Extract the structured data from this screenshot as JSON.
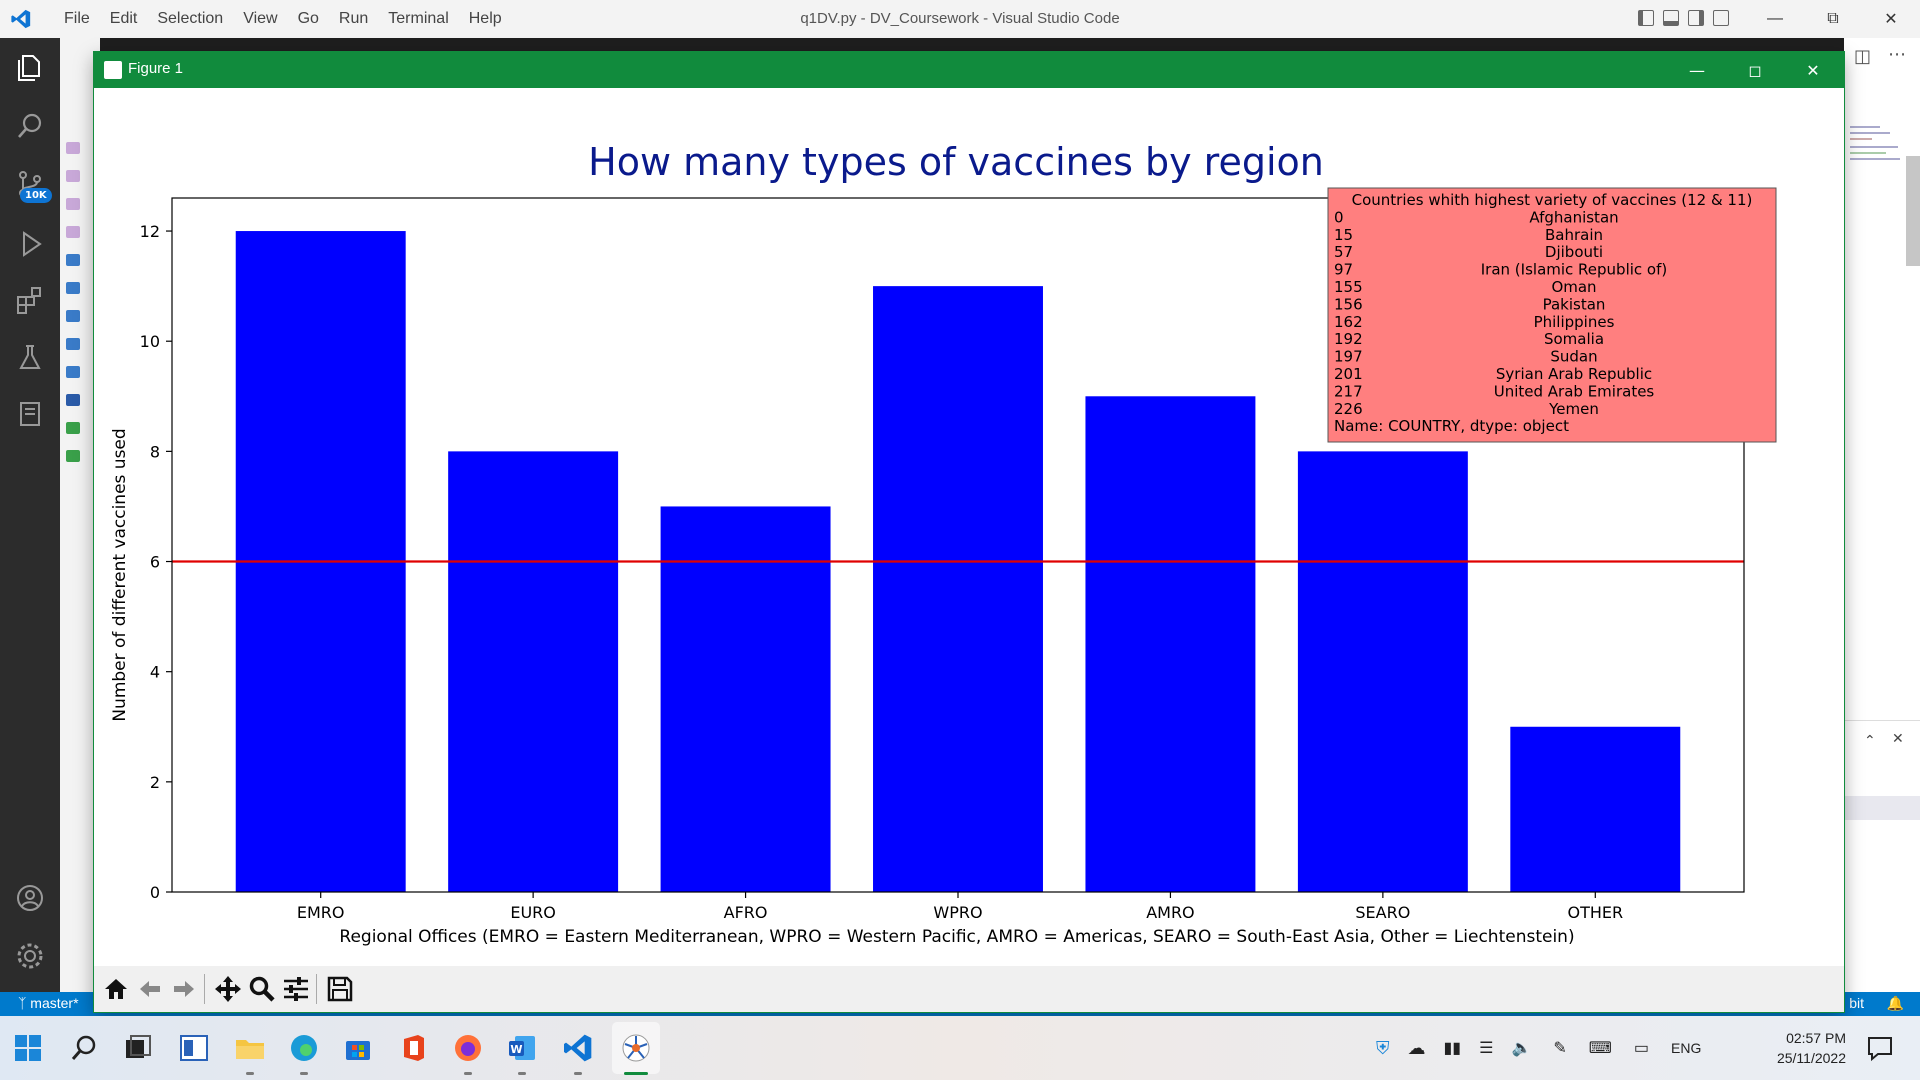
{
  "vscode": {
    "menu": [
      "File",
      "Edit",
      "Selection",
      "View",
      "Go",
      "Run",
      "Terminal",
      "Help"
    ],
    "title": "q1DV.py - DV_Coursework - Visual Studio Code",
    "badge": "10K",
    "status_left": "master*",
    "status_right": "bit"
  },
  "figure_window": {
    "title": "Figure 1"
  },
  "colors": {
    "bar": "#0000ff",
    "threshold_line": "#e00000",
    "title": "#0a1a8c",
    "annotation_bg": "#ff7f7f",
    "window_green": "#118b3d"
  },
  "chart_data": {
    "type": "bar",
    "title": "How many types of vaccines by region",
    "xlabel": "Regional Offices (EMRO = Eastern Mediterranean, WPRO = Western Pacific, AMRO = Americas, SEARO = South-East Asia, Other = Liechtenstein)",
    "ylabel": "Number of different vaccines used",
    "categories": [
      "EMRO",
      "EURO",
      "AFRO",
      "WPRO",
      "AMRO",
      "SEARO",
      "OTHER"
    ],
    "values": [
      12,
      8,
      7,
      11,
      9,
      8,
      3
    ],
    "ylim": [
      0,
      12.6
    ],
    "yticks": [
      0,
      2,
      4,
      6,
      8,
      10,
      12
    ],
    "hline": 6,
    "grid": false,
    "annotation": {
      "header": "Countries whith highest variety of vaccines (12 & 11)",
      "rows": [
        {
          "index": "0",
          "country": "Afghanistan"
        },
        {
          "index": "15",
          "country": "Bahrain"
        },
        {
          "index": "57",
          "country": "Djibouti"
        },
        {
          "index": "97",
          "country": "Iran (Islamic Republic of)"
        },
        {
          "index": "155",
          "country": "Oman"
        },
        {
          "index": "156",
          "country": "Pakistan"
        },
        {
          "index": "162",
          "country": "Philippines"
        },
        {
          "index": "192",
          "country": "Somalia"
        },
        {
          "index": "197",
          "country": "Sudan"
        },
        {
          "index": "201",
          "country": "Syrian Arab Republic"
        },
        {
          "index": "217",
          "country": "United Arab Emirates"
        },
        {
          "index": "226",
          "country": "Yemen"
        }
      ],
      "footer": "Name: COUNTRY, dtype: object",
      "placement": "top-right"
    }
  },
  "taskbar": {
    "language": "ENG",
    "time": "02:57 PM",
    "date": "25/11/2022"
  }
}
